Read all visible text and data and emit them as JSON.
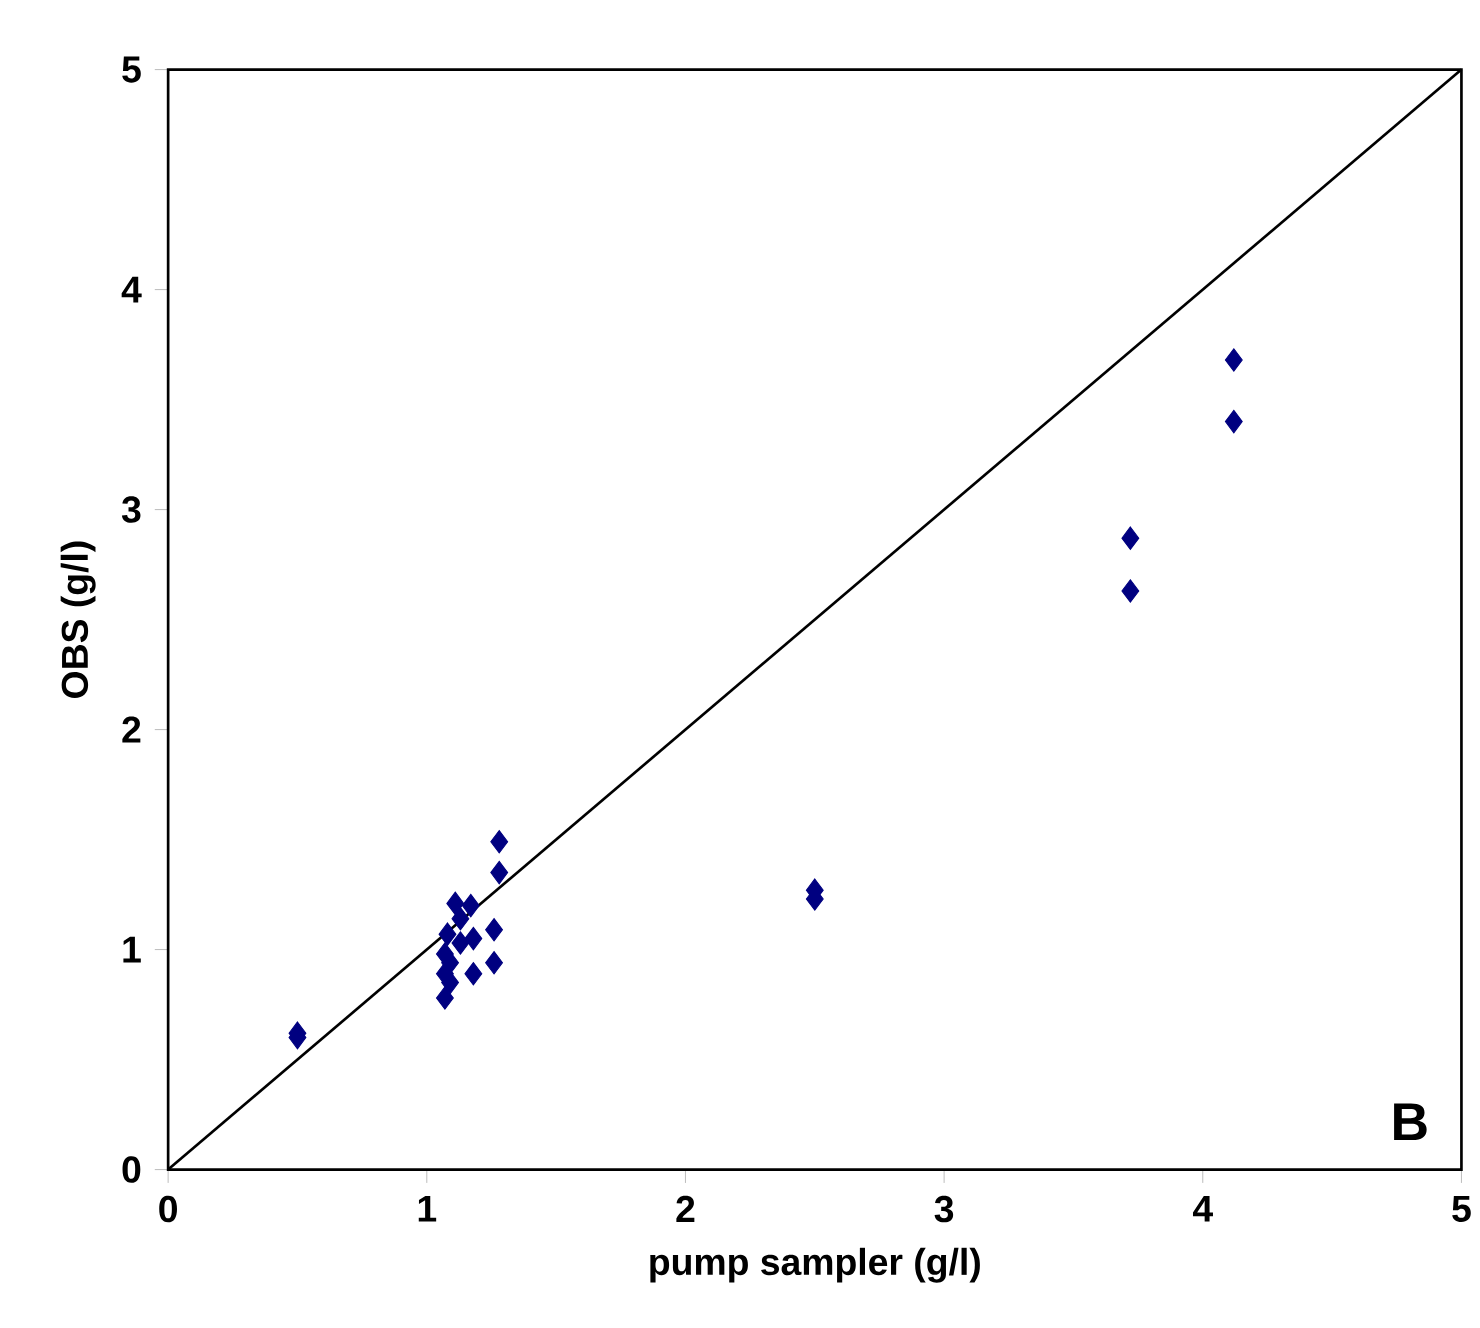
{
  "chart_data": {
    "type": "scatter",
    "xlabel": "pump sampler (g/l)",
    "ylabel": "OBS (g/l)",
    "xlim": [
      0,
      5
    ],
    "ylim": [
      0,
      5
    ],
    "xticks": [
      0,
      1,
      2,
      3,
      4,
      5
    ],
    "yticks": [
      0,
      1,
      2,
      3,
      4,
      5
    ],
    "grid": false,
    "annotations": [
      "B"
    ],
    "series": [
      {
        "color": "#000080",
        "marker": "diamond",
        "x": [
          0.5,
          0.5,
          2.5,
          2.5,
          3.72,
          3.72,
          4.12,
          4.12,
          1.28,
          1.28,
          1.11,
          1.17,
          1.13,
          1.26,
          1.08,
          1.13,
          1.18,
          1.07,
          1.09,
          1.26,
          1.18,
          1.07,
          1.09,
          1.07
        ],
        "values": [
          0.62,
          0.6,
          1.27,
          1.23,
          2.87,
          2.63,
          3.68,
          3.4,
          1.49,
          1.35,
          1.21,
          1.2,
          1.14,
          1.09,
          1.07,
          1.03,
          1.05,
          0.98,
          0.94,
          0.94,
          0.89,
          0.89,
          0.85,
          0.78
        ]
      },
      {
        "type": "line",
        "color": "#000000",
        "marker": "none",
        "line_style": "solid",
        "x": [
          0,
          5
        ],
        "values": [
          0,
          5
        ]
      }
    ]
  }
}
